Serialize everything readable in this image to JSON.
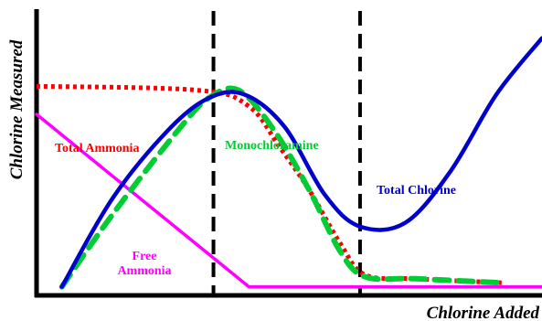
{
  "chart_data": {
    "type": "line",
    "title": "",
    "xlabel": "Chlorine Added",
    "ylabel": "Chlorine Measured",
    "xlim": [
      0,
      10
    ],
    "ylim": [
      0,
      10
    ],
    "grid": false,
    "legend": "inline labels",
    "axis_ticks": "none",
    "breakpoints": [
      3.5,
      6.4
    ],
    "series": [
      {
        "name": "Total Ammonia",
        "style": "dotted",
        "color": "#ff0000",
        "points": [
          [
            0,
            5.1
          ],
          [
            3.2,
            5.0
          ],
          [
            4.2,
            4.6
          ],
          [
            4.8,
            3.6
          ],
          [
            5.4,
            2.5
          ],
          [
            6.0,
            1.2
          ],
          [
            6.5,
            0.4
          ],
          [
            7.5,
            0.3
          ],
          [
            9.2,
            0.2
          ]
        ]
      },
      {
        "name": "Monochloramine",
        "style": "dashed",
        "color": "#00cc33",
        "points": [
          [
            0.5,
            0.1
          ],
          [
            1.5,
            1.9
          ],
          [
            2.8,
            4.0
          ],
          [
            3.4,
            4.8
          ],
          [
            4.0,
            5.0
          ],
          [
            4.7,
            4.0
          ],
          [
            5.4,
            2.5
          ],
          [
            6.0,
            1.0
          ],
          [
            6.5,
            0.35
          ],
          [
            7.5,
            0.3
          ],
          [
            9.2,
            0.2
          ]
        ]
      },
      {
        "name": "Total Chlorine",
        "style": "solid",
        "color": "#0000cc",
        "points": [
          [
            0.5,
            0.1
          ],
          [
            1.5,
            2.3
          ],
          [
            2.6,
            4.0
          ],
          [
            3.4,
            4.8
          ],
          [
            4.1,
            4.9
          ],
          [
            4.9,
            4.1
          ],
          [
            5.7,
            2.4
          ],
          [
            6.4,
            1.6
          ],
          [
            7.3,
            1.7
          ],
          [
            8.2,
            3.0
          ],
          [
            9.1,
            4.9
          ],
          [
            10.0,
            6.3
          ]
        ]
      },
      {
        "name": "Free Ammonia",
        "label_lines": [
          "Free",
          "Ammonia"
        ],
        "style": "solid",
        "color": "#ff00ff",
        "points": [
          [
            0,
            4.4
          ],
          [
            4.2,
            0.1
          ],
          [
            10,
            0.1
          ]
        ]
      }
    ]
  }
}
